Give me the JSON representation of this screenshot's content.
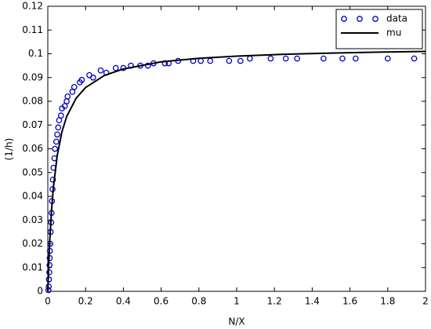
{
  "chart_data": {
    "type": "line",
    "xlabel": "N/X",
    "ylabel": "(1/h)",
    "xlim": [
      0,
      2
    ],
    "ylim": [
      0,
      0.12
    ],
    "xticks": [
      0,
      0.2,
      0.4,
      0.6,
      0.8,
      1,
      1.2,
      1.4,
      1.6,
      1.8,
      2
    ],
    "yticks": [
      0,
      0.01,
      0.02,
      0.03,
      0.04,
      0.05,
      0.06,
      0.07,
      0.08,
      0.09,
      0.1,
      0.11,
      0.12
    ],
    "legend": "upper right",
    "series": [
      {
        "name": "data",
        "color": "#0000cc",
        "marker": "circle",
        "x": [
          0.003,
          0.005,
          0.006,
          0.008,
          0.009,
          0.01,
          0.011,
          0.013,
          0.015,
          0.018,
          0.02,
          0.022,
          0.025,
          0.027,
          0.03,
          0.035,
          0.038,
          0.045,
          0.05,
          0.055,
          0.06,
          0.07,
          0.075,
          0.09,
          0.1,
          0.105,
          0.13,
          0.14,
          0.17,
          0.18,
          0.22,
          0.24,
          0.28,
          0.31,
          0.36,
          0.4,
          0.44,
          0.49,
          0.53,
          0.56,
          0.62,
          0.64,
          0.69,
          0.77,
          0.81,
          0.86,
          0.96,
          1.02,
          1.07,
          1.18,
          1.26,
          1.32,
          1.46,
          1.56,
          1.63,
          1.8,
          1.94
        ],
        "values": [
          0.0005,
          0.002,
          0.005,
          0.008,
          0.011,
          0.014,
          0.017,
          0.02,
          0.025,
          0.029,
          0.033,
          0.038,
          0.043,
          0.047,
          0.052,
          0.056,
          0.06,
          0.063,
          0.066,
          0.069,
          0.072,
          0.074,
          0.077,
          0.078,
          0.08,
          0.082,
          0.084,
          0.086,
          0.088,
          0.089,
          0.091,
          0.09,
          0.093,
          0.092,
          0.094,
          0.094,
          0.095,
          0.095,
          0.095,
          0.096,
          0.096,
          0.096,
          0.097,
          0.097,
          0.097,
          0.097,
          0.097,
          0.097,
          0.098,
          0.098,
          0.098,
          0.098,
          0.098,
          0.098,
          0.098,
          0.098,
          0.098
        ]
      },
      {
        "name": "mu",
        "color": "#000000",
        "marker": "none",
        "x": [
          0,
          0.005,
          0.01,
          0.02,
          0.03,
          0.05,
          0.075,
          0.1,
          0.15,
          0.2,
          0.3,
          0.4,
          0.6,
          0.8,
          1,
          1.25,
          1.5,
          1.75,
          2
        ],
        "values": [
          0,
          0.0114,
          0.0206,
          0.0343,
          0.0441,
          0.0572,
          0.0672,
          0.0736,
          0.0813,
          0.0858,
          0.0909,
          0.0936,
          0.0966,
          0.0981,
          0.099,
          0.0998,
          0.1003,
          0.1007,
          0.101
        ]
      }
    ]
  }
}
